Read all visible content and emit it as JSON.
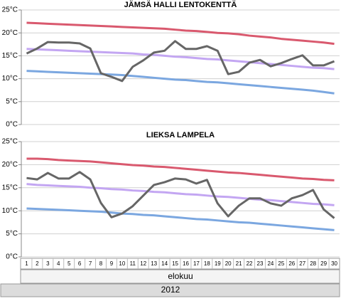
{
  "chart_data": [
    {
      "type": "line",
      "title": "JÄMSÄ HALLI LENTOKENTTÄ",
      "ylim": [
        0,
        25
      ],
      "yticks": [
        {
          "value": 0,
          "label": "0°C"
        },
        {
          "value": 5,
          "label": "5°C"
        },
        {
          "value": 10,
          "label": "10°C"
        },
        {
          "value": 15,
          "label": "15°C"
        },
        {
          "value": 20,
          "label": "20°C"
        },
        {
          "value": 25,
          "label": "25°C"
        }
      ],
      "grid": true,
      "series": [
        {
          "color": "#d9596e",
          "values": [
            22.2,
            22.1,
            22.0,
            21.9,
            21.8,
            21.7,
            21.6,
            21.5,
            21.4,
            21.3,
            21.2,
            21.1,
            21.0,
            20.9,
            20.7,
            20.5,
            20.4,
            20.2,
            20.0,
            19.9,
            19.7,
            19.4,
            19.2,
            19.0,
            18.7,
            18.5,
            18.3,
            18.1,
            17.9,
            17.6
          ]
        },
        {
          "color": "#c3a6f2",
          "values": [
            16.5,
            16.4,
            16.3,
            16.2,
            16.1,
            16.0,
            15.9,
            15.8,
            15.7,
            15.6,
            15.5,
            15.3,
            15.2,
            15.0,
            14.8,
            14.7,
            14.5,
            14.3,
            14.2,
            14.0,
            13.8,
            13.6,
            13.4,
            13.2,
            13.0,
            12.8,
            12.6,
            12.4,
            12.3,
            12.1
          ]
        },
        {
          "color": "#7ba7e0",
          "values": [
            11.7,
            11.6,
            11.5,
            11.4,
            11.3,
            11.2,
            11.1,
            11.0,
            10.9,
            10.8,
            10.6,
            10.4,
            10.2,
            10.0,
            9.8,
            9.7,
            9.5,
            9.3,
            9.2,
            9.0,
            8.8,
            8.6,
            8.4,
            8.2,
            8.0,
            7.8,
            7.6,
            7.4,
            7.1,
            6.8
          ]
        },
        {
          "color": "#666666",
          "values": [
            15.5,
            16.6,
            18.0,
            17.9,
            17.9,
            17.7,
            16.6,
            11.2,
            10.4,
            9.5,
            12.6,
            14.0,
            15.7,
            16.1,
            18.2,
            16.5,
            16.5,
            17.1,
            16.1,
            11.0,
            11.5,
            13.5,
            14.1,
            12.7,
            13.4,
            14.3,
            15.1,
            12.9,
            12.9,
            13.8
          ]
        }
      ]
    },
    {
      "type": "line",
      "title": "LIEKSA LAMPELA",
      "categories": [
        "1",
        "2",
        "3",
        "4",
        "5",
        "6",
        "7",
        "8",
        "9",
        "10",
        "11",
        "12",
        "13",
        "14",
        "15",
        "16",
        "17",
        "18",
        "19",
        "20",
        "21",
        "22",
        "23",
        "24",
        "25",
        "26",
        "27",
        "28",
        "29",
        "30"
      ],
      "xlabel": "elokuu",
      "xlabel2": "2012",
      "ylim": [
        0,
        25
      ],
      "yticks": [
        {
          "value": 0,
          "label": "0°C"
        },
        {
          "value": 5,
          "label": "5°C"
        },
        {
          "value": 10,
          "label": "10°C"
        },
        {
          "value": 15,
          "label": "15°C"
        },
        {
          "value": 20,
          "label": "20°C"
        },
        {
          "value": 25,
          "label": "25°C"
        }
      ],
      "grid": true,
      "series": [
        {
          "color": "#d9596e",
          "values": [
            21.3,
            21.3,
            21.2,
            21.0,
            20.9,
            20.8,
            20.7,
            20.5,
            20.3,
            20.1,
            19.9,
            19.8,
            19.6,
            19.5,
            19.3,
            19.1,
            18.9,
            18.7,
            18.5,
            18.3,
            18.2,
            18.0,
            17.8,
            17.6,
            17.4,
            17.2,
            17.0,
            16.9,
            16.7,
            16.6
          ]
        },
        {
          "color": "#c3a6f2",
          "values": [
            15.8,
            15.6,
            15.5,
            15.4,
            15.3,
            15.2,
            15.0,
            14.9,
            14.7,
            14.6,
            14.4,
            14.3,
            14.1,
            14.0,
            13.8,
            13.6,
            13.5,
            13.3,
            13.1,
            13.0,
            12.8,
            12.6,
            12.4,
            12.3,
            12.1,
            11.9,
            11.7,
            11.5,
            11.4,
            11.2
          ]
        },
        {
          "color": "#7ba7e0",
          "values": [
            10.5,
            10.4,
            10.3,
            10.2,
            10.1,
            10.0,
            9.9,
            9.8,
            9.6,
            9.4,
            9.3,
            9.1,
            9.0,
            8.8,
            8.6,
            8.4,
            8.2,
            8.1,
            7.9,
            7.7,
            7.5,
            7.4,
            7.2,
            7.0,
            6.8,
            6.6,
            6.4,
            6.2,
            6.0,
            5.8
          ]
        },
        {
          "color": "#666666",
          "values": [
            17.1,
            16.8,
            18.2,
            17.0,
            17.0,
            18.4,
            16.8,
            11.7,
            8.6,
            9.4,
            11.0,
            13.3,
            15.6,
            16.2,
            17.0,
            16.8,
            15.9,
            16.7,
            11.6,
            8.8,
            11.1,
            12.7,
            12.7,
            11.6,
            11.1,
            12.7,
            13.4,
            14.5,
            10.3,
            8.4
          ]
        }
      ]
    }
  ]
}
